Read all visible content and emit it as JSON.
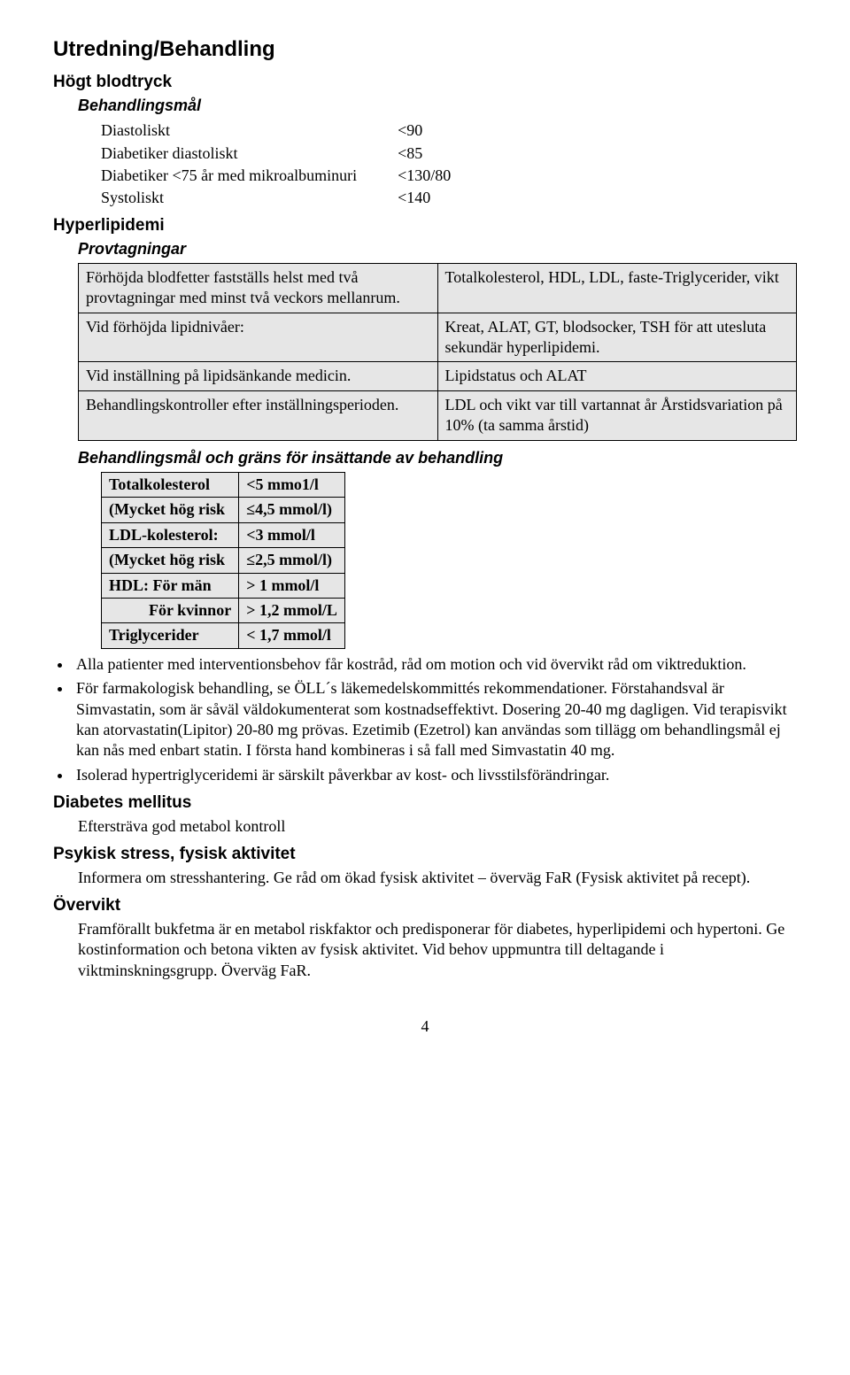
{
  "title": "Utredning/Behandling",
  "hogt_blodtryck": {
    "heading": "Högt blodtryck",
    "sub": "Behandlingsmål",
    "rows": [
      {
        "label": "Diastoliskt",
        "value": "<90"
      },
      {
        "label": "Diabetiker diastoliskt",
        "value": "<85"
      },
      {
        "label": "Diabetiker <75 år med mikroalbuminuri",
        "value": "<130/80"
      },
      {
        "label": "Systoliskt",
        "value": "<140"
      }
    ]
  },
  "hyperlipidemi": {
    "heading": "Hyperlipidemi",
    "sub": "Provtagningar",
    "table": [
      {
        "left": "Förhöjda blodfetter fastställs helst med två provtagningar med minst två veckors mellanrum.",
        "right": "Totalkolesterol, HDL, LDL, faste-Triglycerider, vikt"
      },
      {
        "left": "Vid förhöjda lipidnivåer:",
        "right": "Kreat, ALAT, GT, blodsocker, TSH för att utesluta sekundär hyperlipidemi."
      },
      {
        "left": "Vid inställning på lipidsänkande medicin.",
        "right": "Lipidstatus och ALAT"
      },
      {
        "left": "Behandlingskontroller efter inställningsperioden.",
        "right": "LDL och vikt var till vartannat år Årstidsvariation på 10% (ta samma årstid)"
      }
    ],
    "sub2": "Behandlingsmål och gräns för insättande av behandling",
    "goals": [
      {
        "c1": "Totalkolesterol",
        "c2": "<5 mmo1/l"
      },
      {
        "c1": "(Mycket hög risk",
        "c2": "≤4,5 mmol/l)"
      },
      {
        "c1": "LDL-kolesterol:",
        "c2": "<3 mmol/l"
      },
      {
        "c1": "(Mycket hög risk",
        "c2": "≤2,5 mmol/l)"
      },
      {
        "c1": "HDL: För män",
        "c2": "> 1 mmol/l"
      },
      {
        "c1": "          För kvinnor",
        "c2": "> 1,2 mmol/L"
      },
      {
        "c1": "Triglycerider",
        "c2": "< 1,7 mmol/l"
      }
    ],
    "bullets": [
      "Alla patienter med interventionsbehov får kostråd, råd om motion och vid övervikt råd om viktreduktion.",
      "För farmakologisk behandling, se ÖLL´s läkemedelskommittés rekommendationer. Förstahandsval är Simvastatin, som är såväl väldokumenterat som kostnadseffektivt. Dosering 20-40 mg dagligen. Vid terapisvikt kan atorvastatin(Lipitor) 20-80 mg prövas. Ezetimib (Ezetrol) kan användas som tillägg om behandlingsmål ej kan nås med enbart statin. I första hand kombineras i så fall med Simvastatin 40 mg.",
      "Isolerad hypertriglyceridemi är särskilt påverkbar av kost- och livsstilsförändringar."
    ]
  },
  "diabetes": {
    "heading": "Diabetes mellitus",
    "text": "Eftersträva god metabol kontroll"
  },
  "psykisk": {
    "heading": "Psykisk stress, fysisk aktivitet",
    "text": "Informera om stresshantering. Ge råd om ökad fysisk aktivitet – överväg FaR (Fysisk aktivitet på recept)."
  },
  "overvikt": {
    "heading": "Övervikt",
    "text": "Framförallt bukfetma är en metabol riskfaktor och predisponerar för diabetes, hyperlipidemi och hypertoni. Ge kostinformation och betona vikten av fysisk aktivitet. Vid behov uppmuntra till deltagande i viktminskningsgrupp. Överväg FaR."
  },
  "page": "4"
}
